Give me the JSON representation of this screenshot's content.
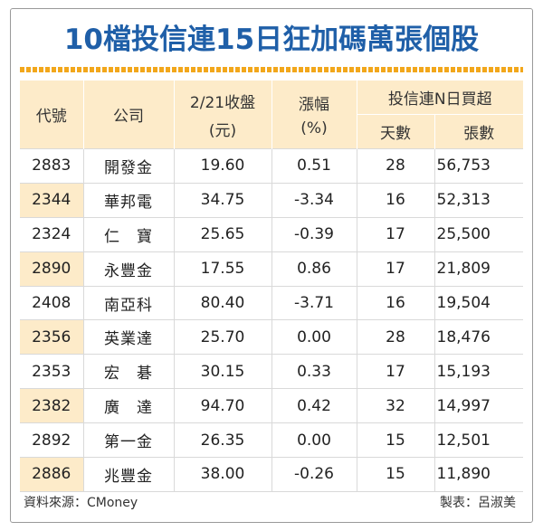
{
  "title": "10檔投信連15日狂加碼萬張個股",
  "headers": {
    "code": "代號",
    "company": "公司",
    "close": "2/21收盤",
    "close_unit": "(元)",
    "change": "漲幅",
    "change_unit": "(%)",
    "group": "投信連N日買超",
    "days": "天數",
    "lots": "張數"
  },
  "rows": [
    {
      "code": "2883",
      "company": "開發金",
      "close": "19.60",
      "change": "0.51",
      "days": "28",
      "lots": "56,753"
    },
    {
      "code": "2344",
      "company": "華邦電",
      "close": "34.75",
      "change": "-3.34",
      "days": "16",
      "lots": "52,313"
    },
    {
      "code": "2324",
      "company": "仁　寶",
      "close": "25.65",
      "change": "-0.39",
      "days": "17",
      "lots": "25,500"
    },
    {
      "code": "2890",
      "company": "永豐金",
      "close": "17.55",
      "change": "0.86",
      "days": "17",
      "lots": "21,809"
    },
    {
      "code": "2408",
      "company": "南亞科",
      "close": "80.40",
      "change": "-3.71",
      "days": "16",
      "lots": "19,504"
    },
    {
      "code": "2356",
      "company": "英業達",
      "close": "25.70",
      "change": "0.00",
      "days": "28",
      "lots": "18,476"
    },
    {
      "code": "2353",
      "company": "宏　碁",
      "close": "30.15",
      "change": "0.33",
      "days": "17",
      "lots": "15,193"
    },
    {
      "code": "2382",
      "company": "廣　達",
      "close": "94.70",
      "change": "0.42",
      "days": "32",
      "lots": "14,997"
    },
    {
      "code": "2892",
      "company": "第一金",
      "close": "26.35",
      "change": "0.00",
      "days": "15",
      "lots": "12,501"
    },
    {
      "code": "2886",
      "company": "兆豐金",
      "close": "38.00",
      "change": "-0.26",
      "days": "15",
      "lots": "11,890"
    }
  ],
  "footer": {
    "source": "資料來源：CMoney",
    "maker": "製表：呂淑美"
  },
  "colors": {
    "title": "#1f5fa8",
    "header_bg": "#fdebc9",
    "rule": "#f2a71b"
  }
}
